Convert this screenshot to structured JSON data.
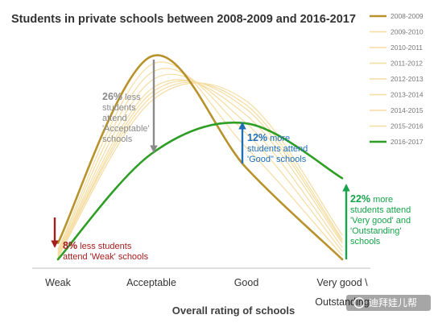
{
  "chart_data": {
    "type": "line",
    "title": "Students in private schools between 2008-2009 and 2016-2017",
    "xlabel": "Overall rating of schools",
    "ylabel": "",
    "categories": [
      "Weak",
      "Acceptable",
      "Good",
      "Very good \\ Outstanding"
    ],
    "category_tick_lines": [
      [
        "Weak"
      ],
      [
        "Acceptable"
      ],
      [
        "Good"
      ],
      [
        "Very good \\",
        "Outstanding"
      ]
    ],
    "y_range": [
      0,
      100
    ],
    "series": [
      {
        "name": "2008-2009",
        "color": "#b8922a",
        "values": [
          8,
          100,
          45,
          0
        ]
      },
      {
        "name": "2009-2010",
        "color": "#f5dca0",
        "values": [
          5,
          96,
          55,
          2
        ]
      },
      {
        "name": "2010-2011",
        "color": "#f5dca0",
        "values": [
          4,
          92,
          62,
          4
        ]
      },
      {
        "name": "2011-2012",
        "color": "#f5dca0",
        "values": [
          3,
          88,
          67,
          6
        ]
      },
      {
        "name": "2012-2013",
        "color": "#f5dca0",
        "values": [
          3,
          84,
          71,
          8
        ]
      },
      {
        "name": "2013-2014",
        "color": "#f5dca0",
        "values": [
          2,
          82,
          74,
          9
        ]
      },
      {
        "name": "2014-2015",
        "color": "#f5dca0",
        "values": [
          2,
          80,
          76,
          10
        ]
      },
      {
        "name": "2015-2016",
        "color": "#f5dca0",
        "values": [
          1,
          78,
          78,
          12
        ]
      },
      {
        "name": "2016-2017",
        "color": "#2e9e25",
        "values": [
          0,
          52,
          67,
          40
        ]
      }
    ],
    "legend_position": "right",
    "grid": false,
    "annotations": [
      {
        "id": "weak",
        "category": "Weak",
        "direction": "down",
        "color": "#a51d1d",
        "bold": "8%",
        "lines": [
          " less students",
          "attend 'Weak' schools"
        ]
      },
      {
        "id": "acceptable",
        "category": "Acceptable",
        "direction": "down",
        "color": "#8a8a8a",
        "bold": "26%",
        "lines": [
          " less",
          "students",
          "attend",
          "'Acceptable'",
          "schools"
        ]
      },
      {
        "id": "good",
        "category": "Good",
        "direction": "up",
        "color": "#1f6fb5",
        "bold": "12%",
        "lines": [
          " more",
          "students attend",
          "'Good\" schools"
        ]
      },
      {
        "id": "verygood",
        "category": "Very good \\ Outstanding",
        "direction": "up",
        "color": "#16a34a",
        "bold": "22%",
        "lines": [
          " more",
          "students attend",
          "'Very good' and",
          "'Outstanding'",
          "schools"
        ]
      }
    ]
  },
  "watermark": {
    "text": "迪拜娃儿帮"
  }
}
